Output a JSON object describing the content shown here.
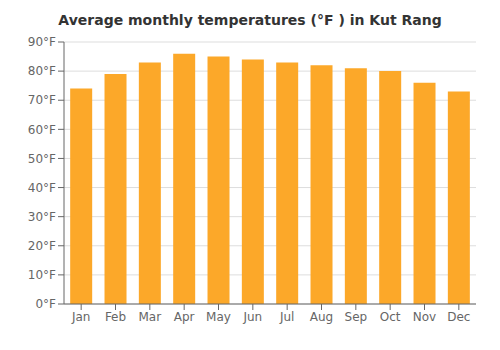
{
  "chart_data": {
    "type": "bar",
    "title": "Average monthly temperatures (°F ) in Kut Rang",
    "categories": [
      "Jan",
      "Feb",
      "Mar",
      "Apr",
      "May",
      "Jun",
      "Jul",
      "Aug",
      "Sep",
      "Oct",
      "Nov",
      "Dec"
    ],
    "values": [
      74,
      79,
      83,
      86,
      85,
      84,
      83,
      82,
      81,
      80,
      76,
      73
    ],
    "color": "#FCA829",
    "ylim": [
      0,
      90
    ],
    "yticks": [
      {
        "value": 0,
        "label": "0°F"
      },
      {
        "value": 10,
        "label": "10°F"
      },
      {
        "value": 20,
        "label": "20°F"
      },
      {
        "value": 30,
        "label": "30°F"
      },
      {
        "value": 40,
        "label": "40°F"
      },
      {
        "value": 50,
        "label": "50°F"
      },
      {
        "value": 60,
        "label": "60°F"
      },
      {
        "value": 70,
        "label": "70°F"
      },
      {
        "value": 80,
        "label": "80°F"
      },
      {
        "value": 90,
        "label": "90°F"
      }
    ],
    "grid": true
  }
}
